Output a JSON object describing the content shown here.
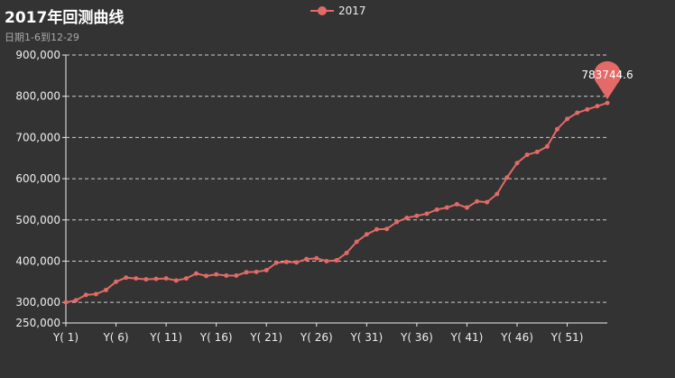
{
  "header": {
    "title": "2017年回测曲线",
    "subtitle": "日期1-6到12-29"
  },
  "legend": {
    "label": "2017"
  },
  "colors": {
    "series": "#e36a66",
    "background": "#333333",
    "grid": "#cccccc"
  },
  "chart_data": {
    "type": "line",
    "title": "2017年回测曲线",
    "subtitle": "日期1-6到12-29",
    "xlabel": "",
    "ylabel": "",
    "ylim": [
      250000,
      900000
    ],
    "y_ticks": [
      250000,
      300000,
      400000,
      500000,
      600000,
      700000,
      800000,
      900000
    ],
    "y_tick_labels": [
      "250,000",
      "300,000",
      "400,000",
      "500,000",
      "600,000",
      "700,000",
      "800,000",
      "900,000"
    ],
    "x_tick_labels": [
      "Y( 1)",
      "Y( 6)",
      "Y( 11)",
      "Y( 16)",
      "Y( 21)",
      "Y( 26)",
      "Y( 31)",
      "Y( 36)",
      "Y( 41)",
      "Y( 46)",
      "Y( 51)"
    ],
    "x_tick_positions": [
      1,
      6,
      11,
      16,
      21,
      26,
      31,
      36,
      41,
      46,
      51
    ],
    "grid": true,
    "legend_position": "top-center",
    "series": [
      {
        "name": "2017",
        "x": [
          1,
          2,
          3,
          4,
          5,
          6,
          7,
          8,
          9,
          10,
          11,
          12,
          13,
          14,
          15,
          16,
          17,
          18,
          19,
          20,
          21,
          22,
          23,
          24,
          25,
          26,
          27,
          28,
          29,
          30,
          31,
          32,
          33,
          34,
          35,
          36,
          37,
          38,
          39,
          40,
          41,
          42,
          43,
          44,
          45,
          46,
          47,
          48,
          49,
          50,
          51,
          52,
          53,
          54,
          55
        ],
        "values": [
          300000,
          305000,
          318000,
          320000,
          330000,
          350000,
          360000,
          358000,
          356000,
          357000,
          358000,
          353000,
          358000,
          370000,
          364000,
          368000,
          365000,
          365000,
          373000,
          374000,
          378000,
          396000,
          398000,
          397000,
          405000,
          407000,
          400000,
          402000,
          420000,
          447000,
          465000,
          477000,
          478000,
          495000,
          505000,
          510000,
          515000,
          525000,
          530000,
          538000,
          530000,
          545000,
          543000,
          563000,
          603000,
          638000,
          658000,
          665000,
          678000,
          720000,
          745000,
          760000,
          768000,
          776000,
          783744.6
        ]
      }
    ],
    "annotations": [
      {
        "type": "max-pin",
        "x": 55,
        "value": "783744.6"
      }
    ]
  }
}
